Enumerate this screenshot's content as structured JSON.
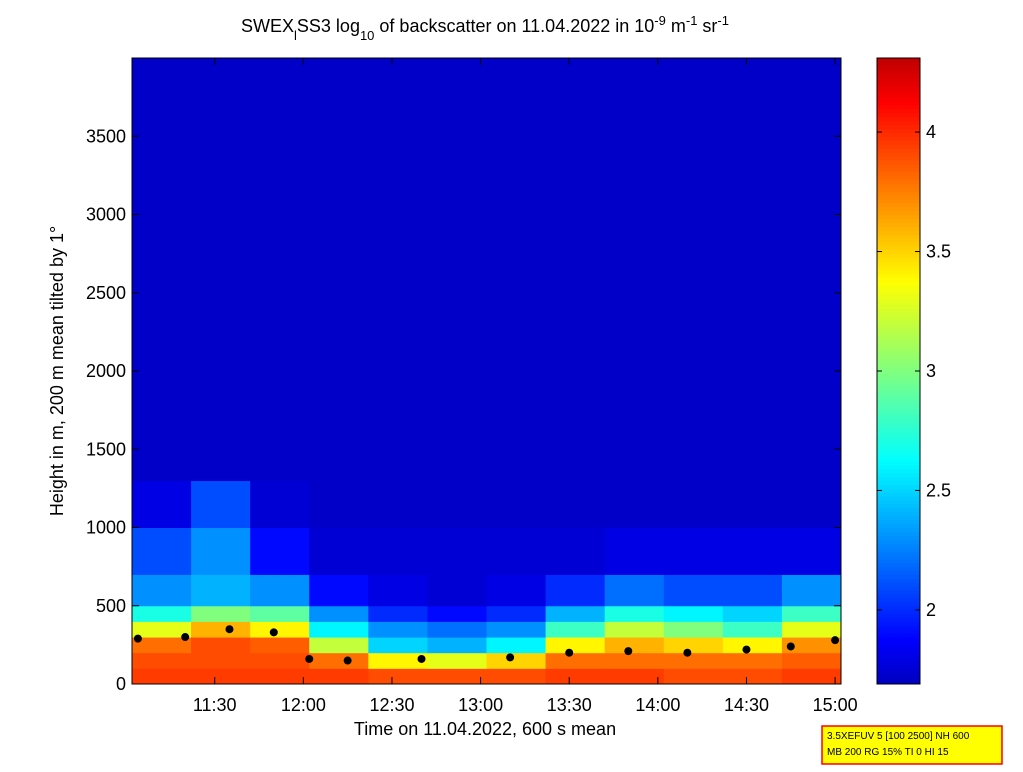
{
  "chart_data": {
    "type": "heatmap",
    "title_parts": [
      "SWEX",
      "l",
      "SS3 log",
      "10",
      " of backscatter on 11.04.2022 in 10",
      "-9",
      " m",
      "-1",
      " sr",
      "-1"
    ],
    "title_shift": [
      "none",
      "sub",
      "none",
      "sub",
      "none",
      "super",
      "none",
      "super",
      "none",
      "super"
    ],
    "x_label": "Time on 11.04.2022, 600 s mean",
    "y_label": "Height in m, 200 m mean tilted by 1°",
    "note": [
      "3.5XEFUV 5 [100 2500] NH 600",
      "MB 200 RG 15% TI 0 HI 15"
    ],
    "x_edges": [
      662,
      682,
      702,
      722,
      742,
      762,
      782,
      802,
      822,
      842,
      862,
      882,
      902
    ],
    "y_edges": [
      0,
      100,
      200,
      300,
      400,
      500,
      700,
      1000,
      1300,
      4000
    ],
    "z": [
      [
        3.95,
        3.95,
        3.95,
        3.95,
        3.9,
        3.9,
        3.9,
        3.95,
        3.95,
        3.9,
        3.9,
        3.95
      ],
      [
        3.9,
        3.9,
        3.9,
        3.8,
        3.4,
        3.3,
        3.5,
        3.8,
        3.8,
        3.8,
        3.8,
        3.85
      ],
      [
        3.8,
        3.9,
        3.85,
        3.2,
        2.5,
        2.4,
        2.6,
        3.4,
        3.6,
        3.5,
        3.4,
        3.7
      ],
      [
        3.3,
        3.6,
        3.4,
        2.6,
        2.3,
        2.2,
        2.3,
        2.8,
        3.2,
        3.0,
        2.8,
        3.3
      ],
      [
        2.7,
        3.0,
        2.9,
        2.3,
        2.0,
        1.9,
        2.0,
        2.4,
        2.7,
        2.6,
        2.5,
        2.8
      ],
      [
        2.3,
        2.4,
        2.3,
        1.9,
        1.8,
        1.75,
        1.8,
        2.0,
        2.2,
        2.1,
        2.1,
        2.3
      ],
      [
        2.1,
        2.3,
        1.9,
        1.75,
        1.75,
        1.75,
        1.75,
        1.75,
        1.8,
        1.8,
        1.8,
        1.8
      ],
      [
        1.8,
        2.1,
        1.75,
        1.72,
        1.72,
        1.72,
        1.72,
        1.72,
        1.72,
        1.72,
        1.72,
        1.72
      ],
      [
        1.72,
        1.72,
        1.72,
        1.72,
        1.72,
        1.72,
        1.72,
        1.72,
        1.72,
        1.72,
        1.72,
        1.72
      ]
    ],
    "series": [
      {
        "color": "#000000",
        "x": [
          664,
          680,
          695,
          710,
          722,
          735,
          760,
          790,
          810,
          830,
          850,
          870,
          885,
          900
        ],
        "values": [
          290,
          300,
          350,
          330,
          160,
          150,
          160,
          170,
          200,
          210,
          200,
          220,
          240,
          280
        ]
      }
    ],
    "xlim": [
      662,
      902
    ],
    "ylim": [
      0,
      4000
    ],
    "clim": [
      1.69,
      4.31
    ],
    "xticks": [
      {
        "value": 690,
        "label": "11:30"
      },
      {
        "value": 720,
        "label": "12:00"
      },
      {
        "value": 750,
        "label": "12:30"
      },
      {
        "value": 780,
        "label": "13:00"
      },
      {
        "value": 810,
        "label": "13:30"
      },
      {
        "value": 840,
        "label": "14:00"
      },
      {
        "value": 870,
        "label": "14:30"
      },
      {
        "value": 900,
        "label": "15:00"
      }
    ],
    "yticks": [
      0,
      500,
      1000,
      1500,
      2000,
      2500,
      3000,
      3500
    ],
    "cticks": [
      2,
      2.5,
      3,
      3.5,
      4
    ],
    "colormap": "jet"
  }
}
